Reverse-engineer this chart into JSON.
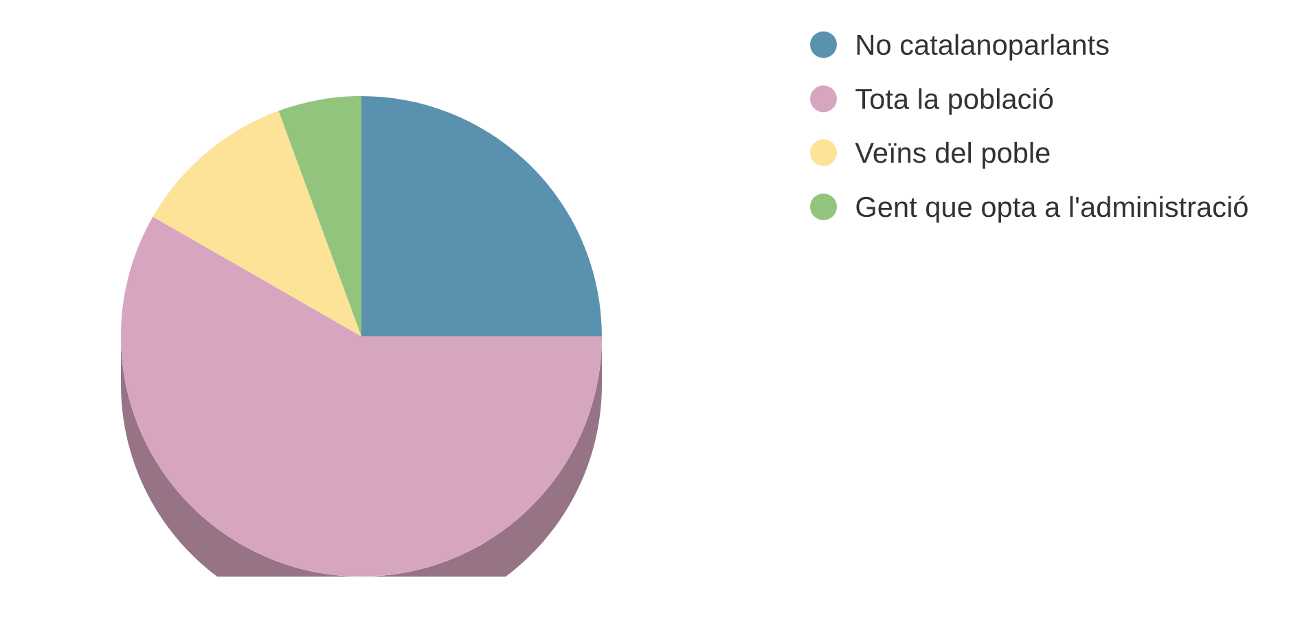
{
  "chart_data": {
    "type": "pie",
    "categories": [
      "No catalanoparlants",
      "Tota la població",
      "Veïns del poble",
      "Gent que opta a l'administració"
    ],
    "values": [
      25,
      58.3,
      11.1,
      5.6
    ],
    "colors": [
      "#5a91ae",
      "#d7a5bf",
      "#fde398",
      "#93c47d"
    ],
    "legend": "top right"
  }
}
